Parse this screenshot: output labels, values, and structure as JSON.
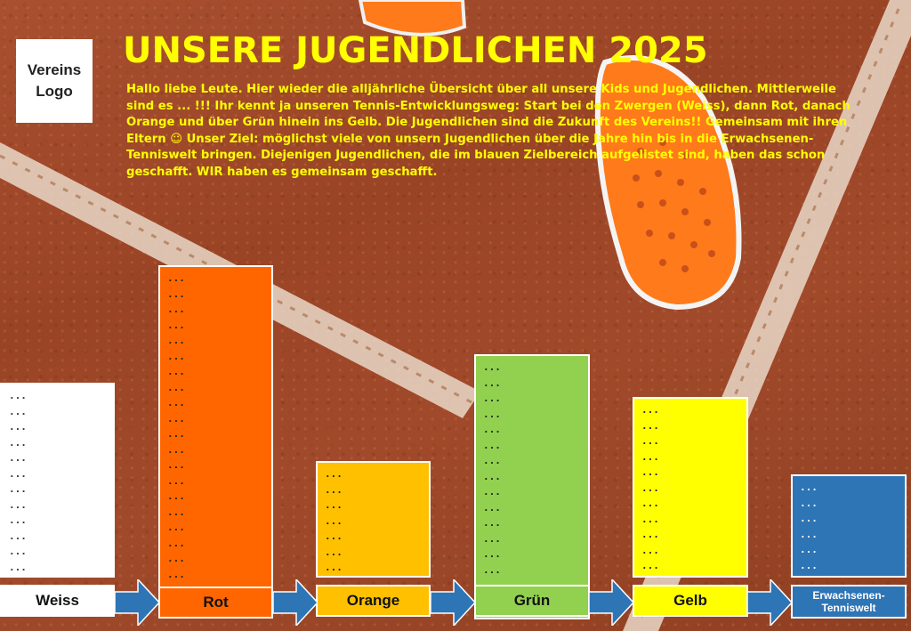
{
  "logo": {
    "line1": "Vereins",
    "line2": "Logo"
  },
  "title": "UNSERE JUGENDLICHEN 2025",
  "intro": "Hallo liebe Leute. Hier wieder die alljährliche Übersicht über all unsere Kids und Jugendlichen. Mittlerweile sind es ... !!! Ihr kennt ja unseren Tennis-Entwicklungsweg: Start bei den Zwergen (Weiss), dann Rot, danach Orange und über Grün hinein ins Gelb. Die Jugendlichen sind die Zukunft des Vereins!! Gemeinsam mit ihren Eltern ☺ Unser Ziel: möglichst viele von unsern Jugendlichen über die Jahre hin bis in die Erwachsenen-Tenniswelt bringen. Diejenigen Jugendlichen, die im blauen Zielbereich aufgelistet sind, haben das schon geschafft. WIR haben es gemeinsam geschafft.",
  "stages": [
    {
      "key": "weiss",
      "label": "Weiss",
      "color": "#ffffff",
      "entries": [
        "...",
        "...",
        "...",
        "...",
        "...",
        "...",
        "...",
        "...",
        "...",
        "...",
        "...",
        "..."
      ]
    },
    {
      "key": "rot",
      "label": "Rot",
      "color": "#ff6600",
      "entries": [
        "...",
        "...",
        "...",
        "...",
        "...",
        "...",
        "...",
        "...",
        "...",
        "...",
        "...",
        "...",
        "...",
        "...",
        "...",
        "...",
        "...",
        "...",
        "...",
        "...",
        "...",
        "...",
        "..."
      ]
    },
    {
      "key": "orange",
      "label": "Orange",
      "color": "#ffc000",
      "entries": [
        "...",
        "...",
        "...",
        "...",
        "...",
        "...",
        "...",
        "..."
      ]
    },
    {
      "key": "gruen",
      "label": "Grün",
      "color": "#92d050",
      "entries": [
        "...",
        "...",
        "...",
        "...",
        "...",
        "...",
        "...",
        "...",
        "...",
        "...",
        "...",
        "...",
        "...",
        "...",
        "...",
        "...",
        "..."
      ]
    },
    {
      "key": "gelb",
      "label": "Gelb",
      "color": "#ffff00",
      "entries": [
        "...",
        "...",
        "...",
        "...",
        "...",
        "...",
        "...",
        "...",
        "...",
        "...",
        "..."
      ]
    },
    {
      "key": "erw",
      "label": "Erwachsenen-Tenniswelt",
      "color": "#2e75b6",
      "entries": [
        "...",
        "...",
        "...",
        "...",
        "...",
        "..."
      ]
    }
  ],
  "arrow_color": "#2e75b6"
}
